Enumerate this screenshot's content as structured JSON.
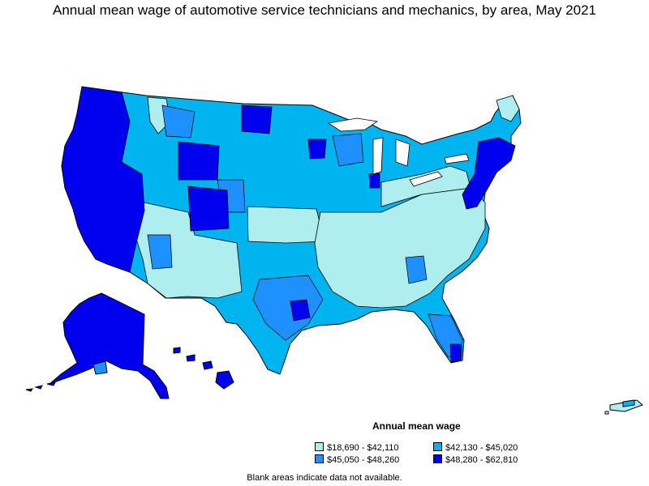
{
  "title": "Annual mean wage of automotive service technicians and mechanics, by area, May 2021",
  "legend": {
    "title": "Annual mean wage",
    "items": [
      {
        "label": "$18,690 - $42,110",
        "color": "#aeeeee"
      },
      {
        "label": "$42,130 - $45,020",
        "color": "#00b4f0"
      },
      {
        "label": "$45,050 - $48,260",
        "color": "#1e90ff"
      },
      {
        "label": "$48,280 - $62,810",
        "color": "#0000ee"
      }
    ]
  },
  "note": "Blank areas indicate data not available."
}
